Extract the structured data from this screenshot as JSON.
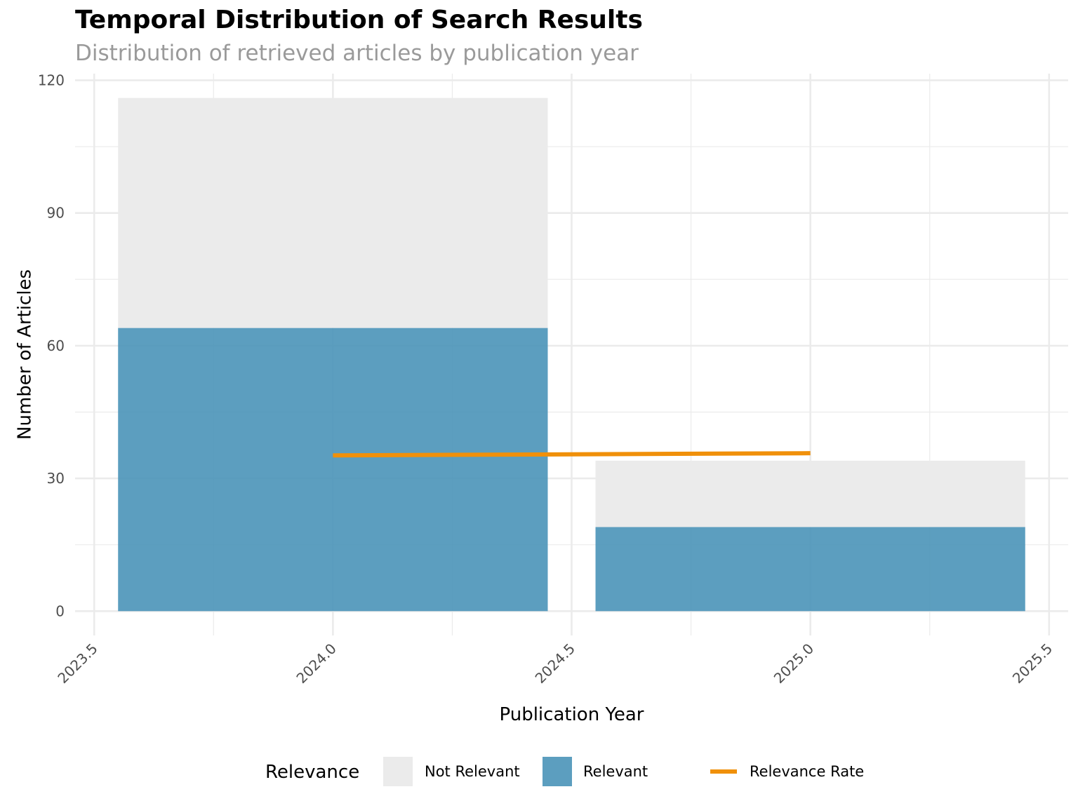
{
  "title": "Temporal Distribution of Search Results",
  "subtitle": "Distribution of retrieved articles by publication year",
  "colors": {
    "relevant": "#4A94B8",
    "not_relevant": "#EBEBEB",
    "rate_line": "#F0900A",
    "grid": "#EBEBEB"
  },
  "chart_data": {
    "type": "bar",
    "stacked": true,
    "x": [
      2024,
      2025
    ],
    "series": [
      {
        "name": "Not Relevant",
        "values": [
          52,
          15
        ]
      },
      {
        "name": "Relevant",
        "values": [
          64,
          19
        ]
      }
    ],
    "totals": [
      116,
      34
    ],
    "line_series": {
      "name": "Relevance Rate",
      "x": [
        2024,
        2025
      ],
      "values": [
        35.2,
        35.7
      ]
    },
    "xlabel": "Publication Year",
    "ylabel": "Number of Articles",
    "xlim": [
      2023.46,
      2025.54
    ],
    "ylim": [
      -5.5,
      121.5
    ],
    "x_ticks": [
      "2023.5",
      "2024.0",
      "2024.5",
      "2025.0",
      "2025.5"
    ],
    "y_ticks": [
      "0",
      "30",
      "60",
      "90",
      "120"
    ],
    "grid": true,
    "legend": {
      "title": "Relevance",
      "placement": "bottom",
      "items": [
        "Not Relevant",
        "Relevant",
        "Relevance Rate"
      ]
    }
  }
}
